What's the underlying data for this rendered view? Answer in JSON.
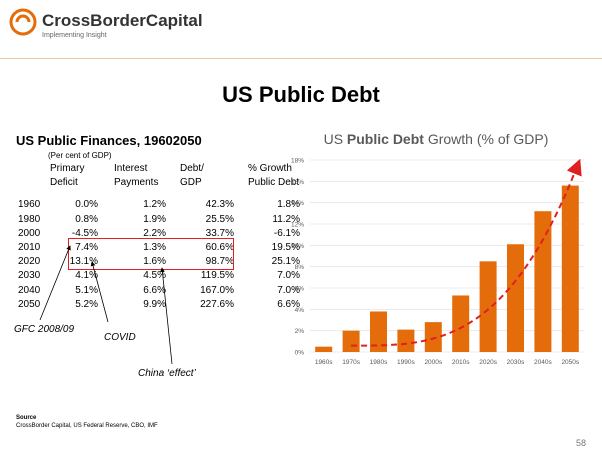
{
  "header": {
    "brand_name": "CrossBorderCapital",
    "tagline": "Implementing Insight",
    "accent_color": "#e46c0a"
  },
  "slide": {
    "title": "US Public Debt",
    "page_number": "58"
  },
  "table": {
    "title": "US Public Finances, 19602050",
    "subtitle": "(Per cent of GDP)",
    "headers": [
      [
        "",
        ""
      ],
      [
        "Primary",
        "Deficit"
      ],
      [
        "Interest",
        "Payments"
      ],
      [
        "Debt/",
        "GDP"
      ],
      [
        "% Growth",
        "Public Debt"
      ]
    ],
    "rows": [
      [
        "1960",
        "0.0%",
        "1.2%",
        "42.3%",
        "1.8%"
      ],
      [
        "1980",
        "0.8%",
        "1.9%",
        "25.5%",
        "11.2%"
      ],
      [
        "2000",
        "-4.5%",
        "2.2%",
        "33.7%",
        "-6.1%"
      ],
      [
        "2010",
        "7.4%",
        "1.3%",
        "60.6%",
        "19.5%"
      ],
      [
        "2020",
        "13.1%",
        "1.6%",
        "98.7%",
        "25.1%"
      ],
      [
        "2030",
        "4.1%",
        "4.5%",
        "119.5%",
        "7.0%"
      ],
      [
        "2040",
        "5.1%",
        "6.6%",
        "167.0%",
        "7.0%"
      ],
      [
        "2050",
        "5.2%",
        "9.9%",
        "227.6%",
        "6.6%"
      ]
    ]
  },
  "annotations": {
    "gfc": "GFC 2008/09",
    "covid": "COVID",
    "china": "China ‘effect’",
    "highlight_color": "#e02020"
  },
  "source": {
    "label": "Source",
    "text": "CrossBorder Capital, US Federal Reserve, CBO, IMF"
  },
  "chart_data": {
    "type": "bar",
    "title_prefix": "US ",
    "title_bold": "Public Debt",
    "title_suffix": " Growth (% of GDP)",
    "categories": [
      "1960s",
      "1970s",
      "1980s",
      "1990s",
      "2000s",
      "2010s",
      "2020s",
      "2030s",
      "2040s",
      "2050s"
    ],
    "values": [
      0.5,
      2.0,
      3.8,
      2.1,
      2.8,
      5.3,
      8.5,
      10.1,
      13.2,
      15.6
    ],
    "y_ticks": [
      "0%",
      "2%",
      "4%",
      "6%",
      "8%",
      "10%",
      "12%",
      "14%",
      "16%",
      "18%"
    ],
    "ylim": [
      0,
      18
    ],
    "bar_color": "#e46c0a",
    "trend_color": "#e02020",
    "trend_style": "dashed exponential with arrow",
    "grid": true
  }
}
